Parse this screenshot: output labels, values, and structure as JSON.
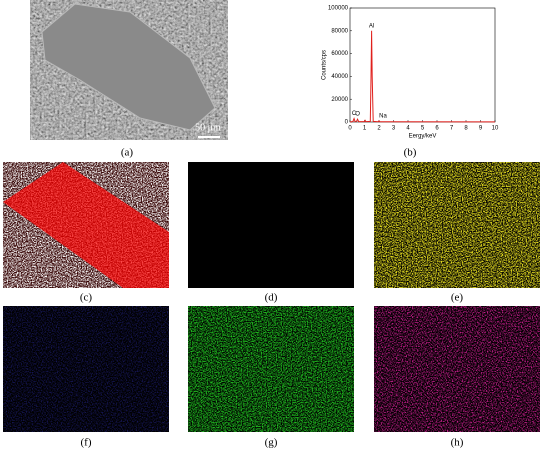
{
  "panels": {
    "a": {
      "label": "(a)",
      "scale_bar": "50 μm"
    },
    "b": {
      "label": "(b)"
    },
    "c": {
      "label": "(c)"
    },
    "d": {
      "label": "(d)"
    },
    "e": {
      "label": "(e)"
    },
    "f": {
      "label": "(f)"
    },
    "g": {
      "label": "(g)"
    },
    "h": {
      "label": "(h)"
    }
  },
  "chart_data": {
    "type": "line",
    "x_label": "Eergy/keV",
    "y_label": "Counts/cps",
    "x": [
      0,
      0.2,
      0.28,
      0.35,
      0.45,
      0.52,
      0.6,
      1.0,
      1.04,
      1.1,
      1.4,
      1.45,
      1.49,
      1.53,
      1.6,
      1.95,
      2.0,
      2.05,
      2.5,
      10
    ],
    "series": [
      {
        "name": "spectrum",
        "color": "#e0201c",
        "values": [
          0,
          500,
          3000,
          400,
          600,
          2500,
          300,
          300,
          1500,
          300,
          500,
          40000,
          80000,
          40000,
          500,
          200,
          1000,
          200,
          200,
          100
        ]
      }
    ],
    "xlim": [
      0,
      10
    ],
    "ylim": [
      0,
      100000
    ],
    "xticks": [
      0,
      1,
      2,
      3,
      4,
      5,
      6,
      7,
      8,
      9,
      10
    ],
    "yticks": [
      0,
      20000,
      40000,
      60000,
      80000,
      100000
    ],
    "annotations": [
      {
        "text": "C",
        "x": 0.28,
        "y": 3000
      },
      {
        "text": "O",
        "x": 0.52,
        "y": 2500
      },
      {
        "text": "Al",
        "x": 1.49,
        "y": 80000
      },
      {
        "text": "Na",
        "x": 2.0,
        "y": 1000
      }
    ]
  }
}
